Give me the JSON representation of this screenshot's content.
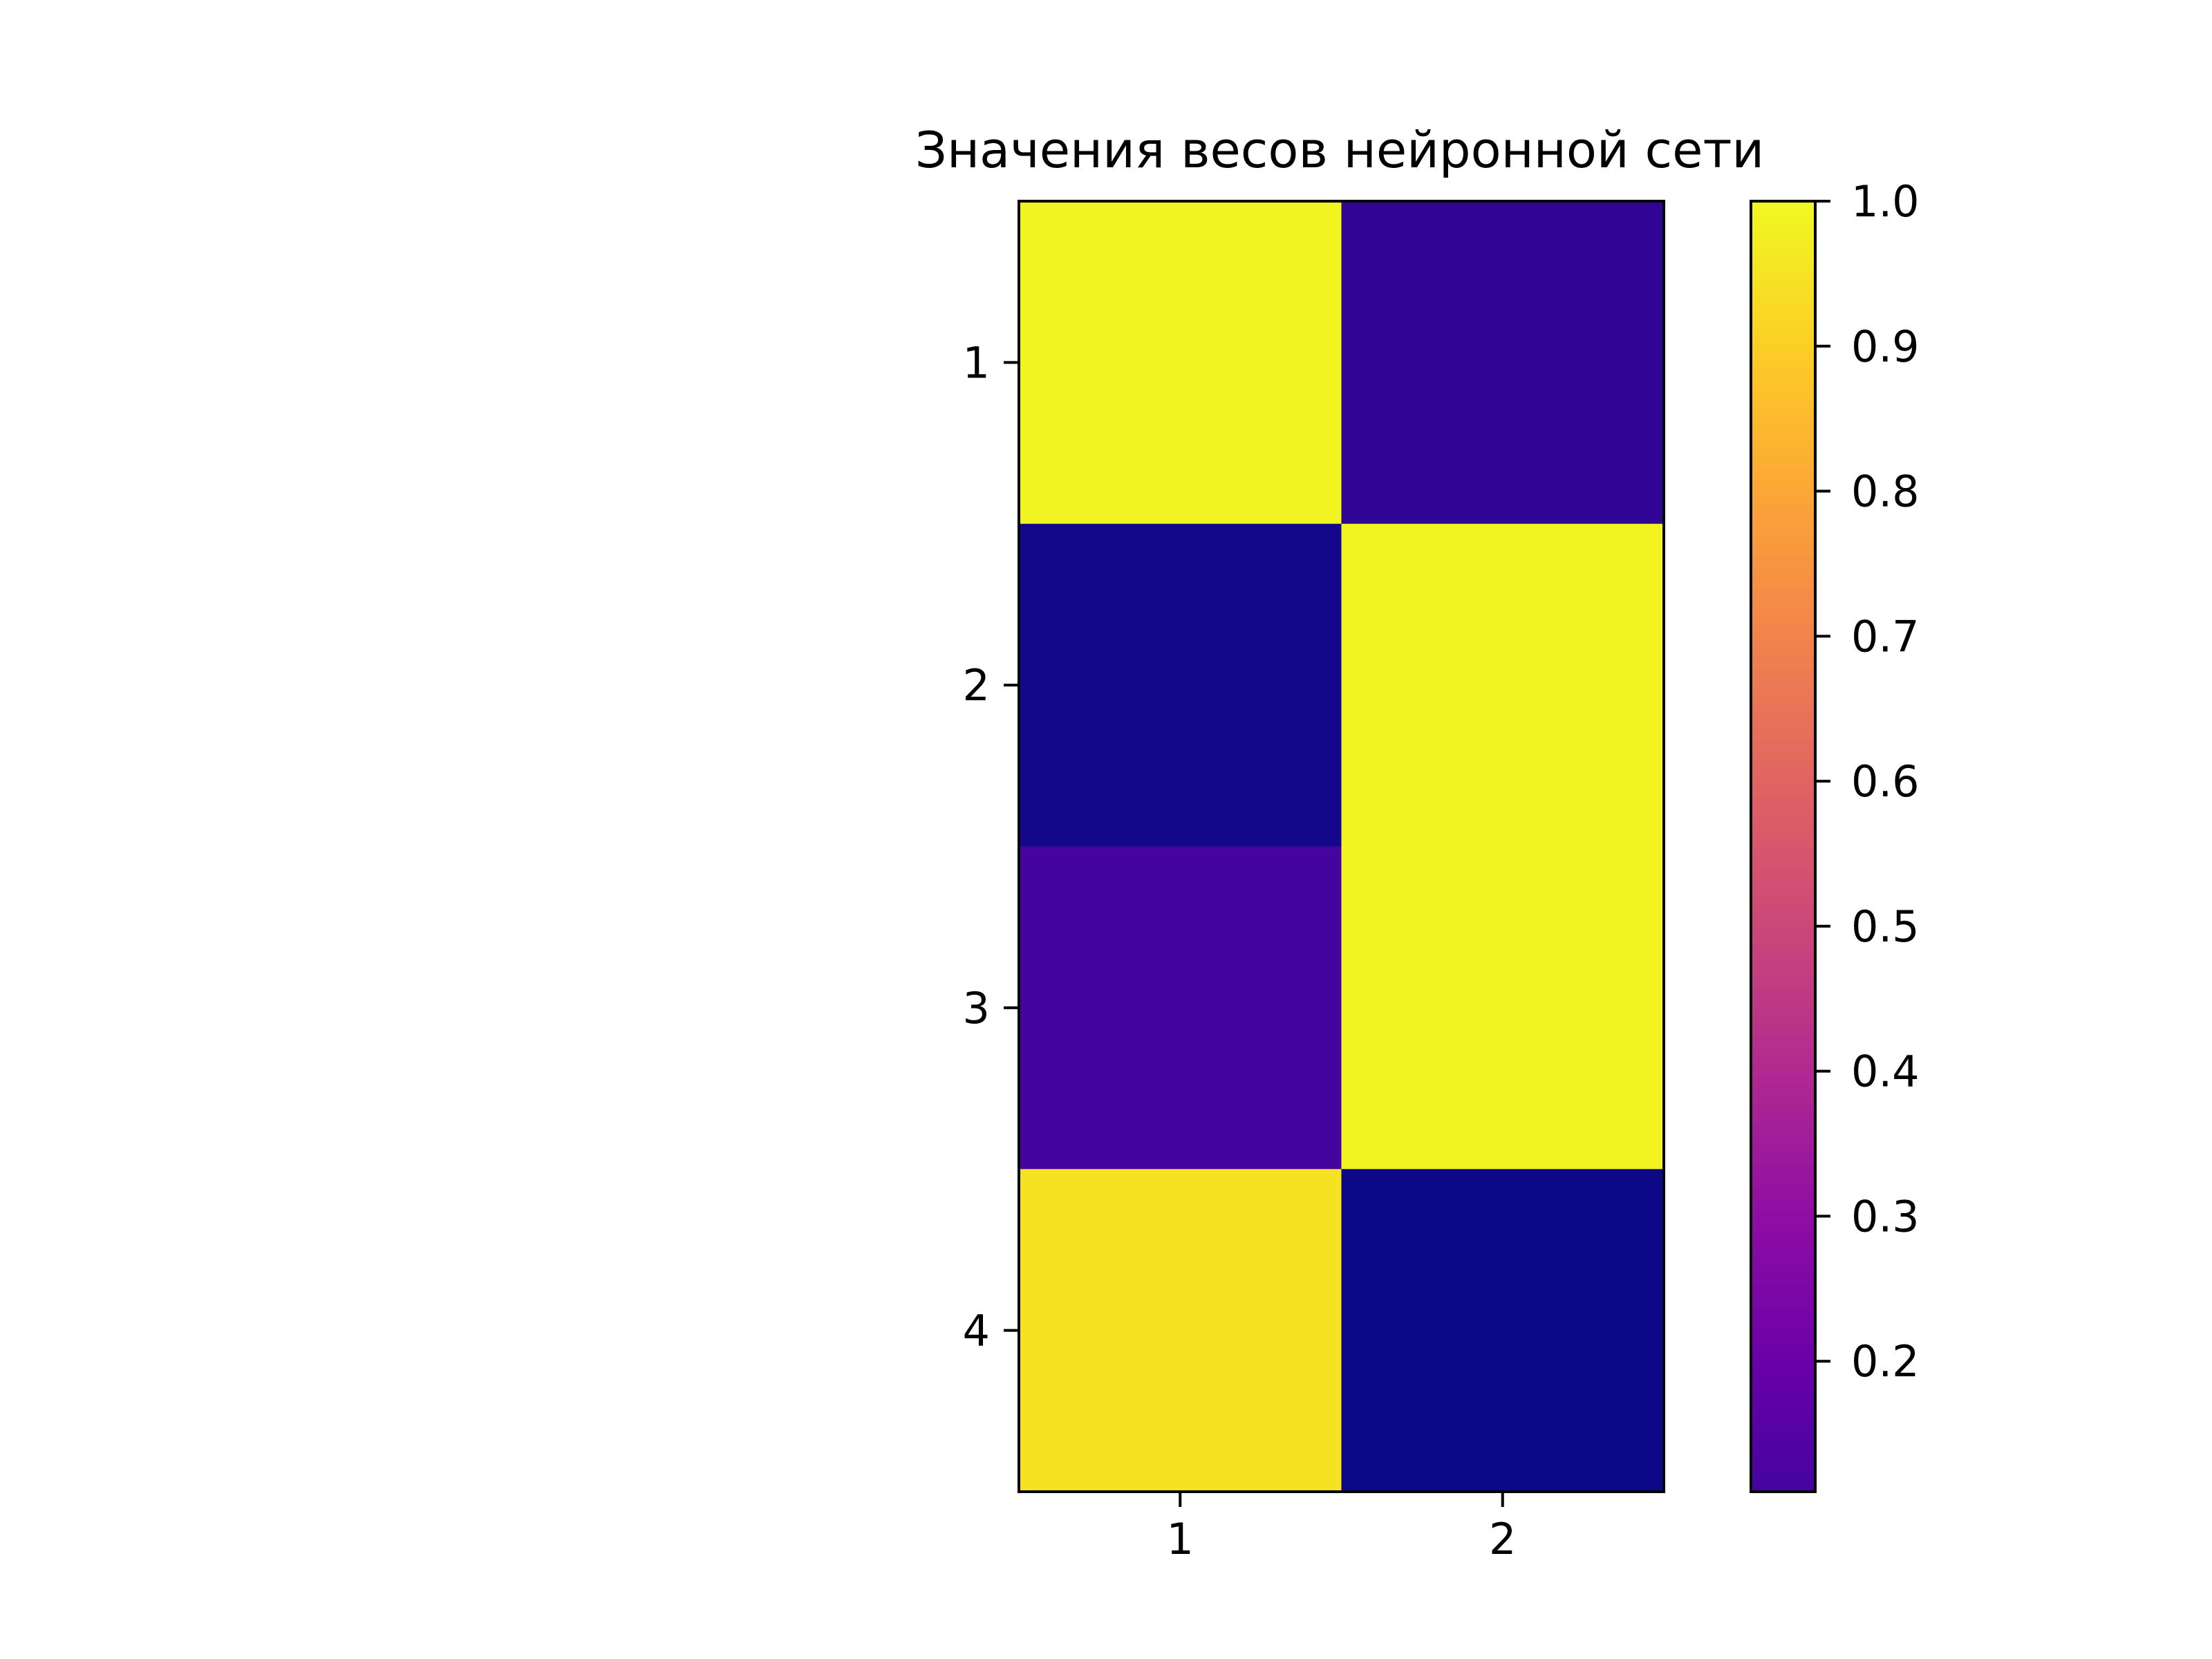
{
  "chart_data": {
    "type": "heatmap",
    "title": "Значения весов нейронной сети",
    "x_ticks": [
      "1",
      "2"
    ],
    "y_ticks": [
      "1",
      "2",
      "3",
      "4"
    ],
    "values": [
      [
        0.99,
        0.17
      ],
      [
        0.12,
        0.99
      ],
      [
        0.21,
        0.99
      ],
      [
        0.95,
        0.11
      ]
    ],
    "colormap": "plasma",
    "colorbar": {
      "min": 0.11,
      "max": 1.0,
      "ticks": [
        "0.2",
        "0.3",
        "0.4",
        "0.5",
        "0.6",
        "0.7",
        "0.8",
        "0.9",
        "1.0"
      ]
    }
  }
}
